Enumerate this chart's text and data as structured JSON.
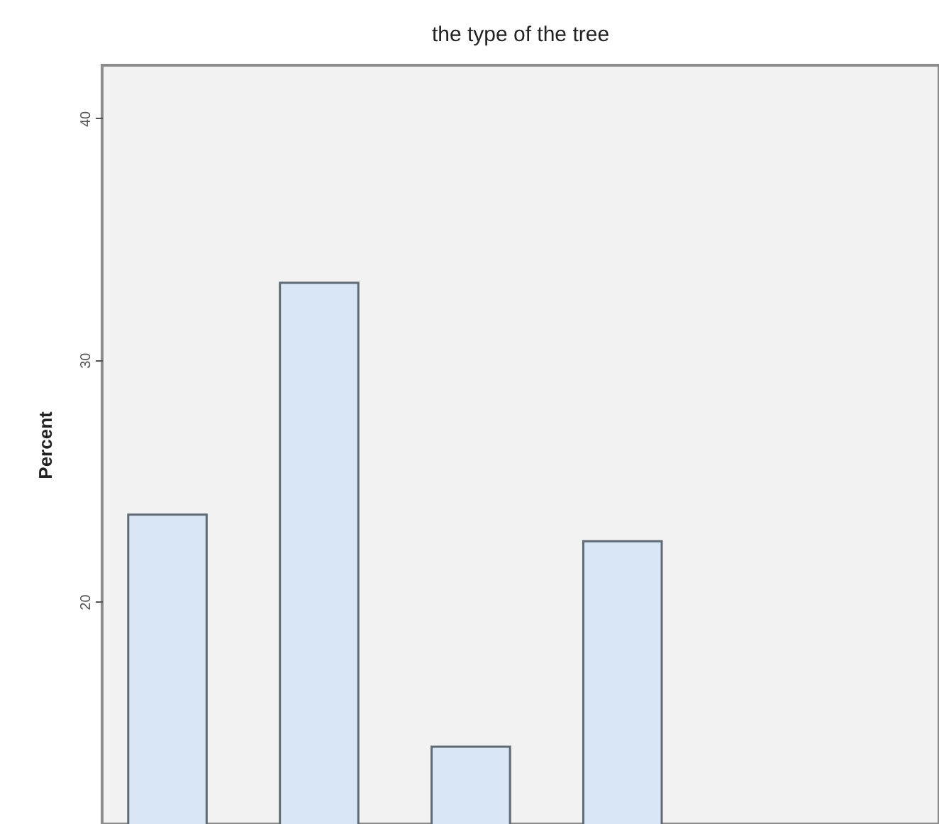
{
  "chart_data": {
    "type": "bar",
    "title": "the type of the tree",
    "ylabel": "Percent",
    "categories": [
      null,
      null,
      null,
      null
    ],
    "values": [
      23.6,
      33.2,
      14.0,
      22.5
    ],
    "color": "#d9e6f5",
    "ylim": [
      10.8,
      42.2
    ],
    "yticks": [
      20,
      30,
      40
    ],
    "grid": false,
    "tick_labels": "y"
  }
}
